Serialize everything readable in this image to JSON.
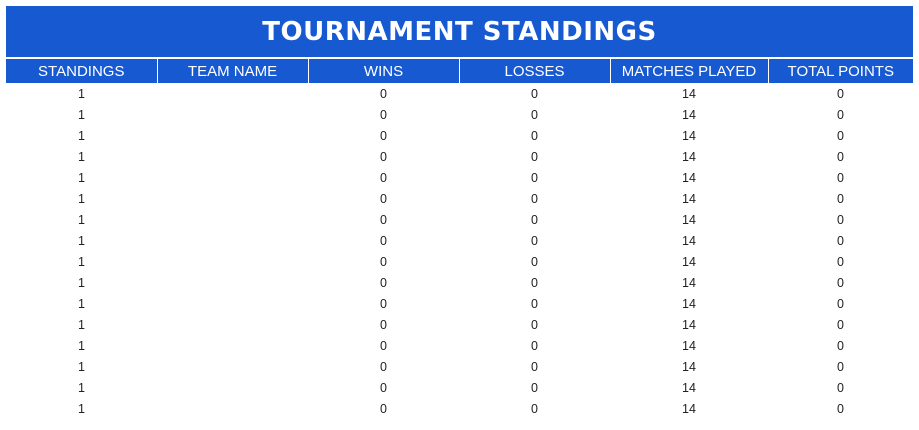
{
  "title": "TOURNAMENT STANDINGS",
  "colors": {
    "header_background": "#1759d1",
    "header_text": "#ffffff",
    "cell_text": "#222222"
  },
  "columns": [
    "STANDINGS",
    "TEAM NAME",
    "WINS",
    "LOSSES",
    "MATCHES PLAYED",
    "TOTAL POINTS"
  ],
  "rows": [
    {
      "standing": "1",
      "team": "",
      "wins": "0",
      "losses": "0",
      "played": "14",
      "points": "0"
    },
    {
      "standing": "1",
      "team": "",
      "wins": "0",
      "losses": "0",
      "played": "14",
      "points": "0"
    },
    {
      "standing": "1",
      "team": "",
      "wins": "0",
      "losses": "0",
      "played": "14",
      "points": "0"
    },
    {
      "standing": "1",
      "team": "",
      "wins": "0",
      "losses": "0",
      "played": "14",
      "points": "0"
    },
    {
      "standing": "1",
      "team": "",
      "wins": "0",
      "losses": "0",
      "played": "14",
      "points": "0"
    },
    {
      "standing": "1",
      "team": "",
      "wins": "0",
      "losses": "0",
      "played": "14",
      "points": "0"
    },
    {
      "standing": "1",
      "team": "",
      "wins": "0",
      "losses": "0",
      "played": "14",
      "points": "0"
    },
    {
      "standing": "1",
      "team": "",
      "wins": "0",
      "losses": "0",
      "played": "14",
      "points": "0"
    },
    {
      "standing": "1",
      "team": "",
      "wins": "0",
      "losses": "0",
      "played": "14",
      "points": "0"
    },
    {
      "standing": "1",
      "team": "",
      "wins": "0",
      "losses": "0",
      "played": "14",
      "points": "0"
    },
    {
      "standing": "1",
      "team": "",
      "wins": "0",
      "losses": "0",
      "played": "14",
      "points": "0"
    },
    {
      "standing": "1",
      "team": "",
      "wins": "0",
      "losses": "0",
      "played": "14",
      "points": "0"
    },
    {
      "standing": "1",
      "team": "",
      "wins": "0",
      "losses": "0",
      "played": "14",
      "points": "0"
    },
    {
      "standing": "1",
      "team": "",
      "wins": "0",
      "losses": "0",
      "played": "14",
      "points": "0"
    },
    {
      "standing": "1",
      "team": "",
      "wins": "0",
      "losses": "0",
      "played": "14",
      "points": "0"
    },
    {
      "standing": "1",
      "team": "",
      "wins": "0",
      "losses": "0",
      "played": "14",
      "points": "0"
    }
  ]
}
